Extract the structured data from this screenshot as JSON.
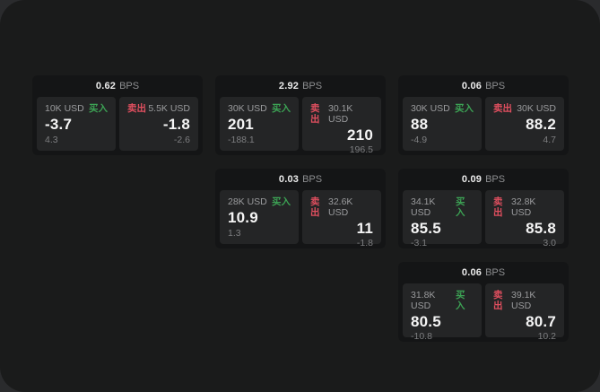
{
  "labels": {
    "bps": "BPS",
    "buy": "买入",
    "sell": "卖出"
  },
  "colors": {
    "window_bg": "#1a1b1b",
    "card_bg": "#141516",
    "panel_bg": "#242526",
    "buy_green": "#3ca254",
    "sell_red": "#e04f5f"
  },
  "cards": [
    {
      "bps": "0.62",
      "buy": {
        "size": "10K USD",
        "value": "-3.7",
        "delta": "4.3"
      },
      "sell": {
        "size": "5.5K USD",
        "value": "-1.8",
        "delta": "-2.6"
      }
    },
    {
      "bps": "2.92",
      "buy": {
        "size": "30K USD",
        "value": "201",
        "delta": "-188.1"
      },
      "sell": {
        "size": "30.1K USD",
        "value": "210",
        "delta": "196.5"
      }
    },
    {
      "bps": "0.06",
      "buy": {
        "size": "30K USD",
        "value": "88",
        "delta": "-4.9"
      },
      "sell": {
        "size": "30K USD",
        "value": "88.2",
        "delta": "4.7"
      }
    },
    {
      "bps": "0.03",
      "buy": {
        "size": "28K USD",
        "value": "10.9",
        "delta": "1.3"
      },
      "sell": {
        "size": "32.6K USD",
        "value": "11",
        "delta": "-1.8"
      }
    },
    {
      "bps": "0.09",
      "buy": {
        "size": "34.1K USD",
        "value": "85.5",
        "delta": "-3.1"
      },
      "sell": {
        "size": "32.8K USD",
        "value": "85.8",
        "delta": "3.0"
      }
    },
    {
      "bps": "0.06",
      "buy": {
        "size": "31.8K USD",
        "value": "80.5",
        "delta": "-10.8"
      },
      "sell": {
        "size": "39.1K USD",
        "value": "80.7",
        "delta": "10.2"
      }
    }
  ]
}
